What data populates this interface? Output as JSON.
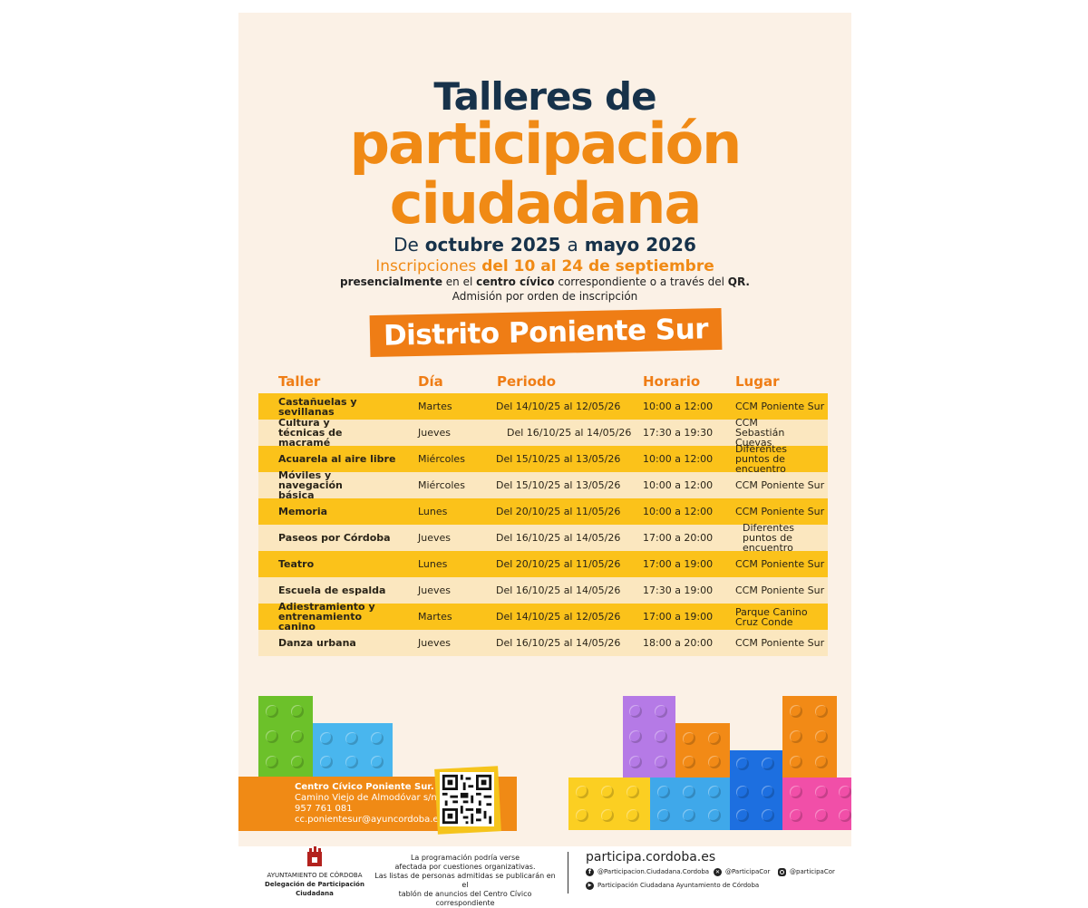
{
  "title": {
    "line1": "Talleres de",
    "line2": "participación",
    "line3": "ciudadana"
  },
  "dates": {
    "de": "De",
    "start": "octubre 2025",
    "a": "a",
    "end": "mayo 2026"
  },
  "inscripciones": {
    "label": "Inscripciones",
    "range": "del 10 al 24 de septiembre"
  },
  "presencial": {
    "bold1": "presencialmente",
    "text1": "en el",
    "bold2": "centro cívico",
    "text2": "correspondiente o a través del",
    "bold3": "QR."
  },
  "admision": "Admisión por orden de inscripción",
  "district": "Distrito Poniente Sur",
  "table": {
    "headers": [
      "Taller",
      "Día",
      "Periodo",
      "Horario",
      "Lugar"
    ],
    "rows": [
      {
        "taller": "Castañuelas y sevillanas",
        "dia": "Martes",
        "periodo": "Del 14/10/25 al 12/05/26",
        "horario": "10:00 a 12:00",
        "lugar": "CCM Poniente Sur"
      },
      {
        "taller": "Cultura y técnicas de macramé",
        "dia": "Jueves",
        "periodo": "Del 16/10/25 al 14/05/26",
        "horario": "17:30 a 19:30",
        "lugar": "CCM Sebastián Cuevas"
      },
      {
        "taller": "Acuarela al aire libre",
        "dia": "Miércoles",
        "periodo": "Del 15/10/25 al 13/05/26",
        "horario": "10:00 a 12:00",
        "lugar": "Diferentes puntos de encuentro"
      },
      {
        "taller": "Móviles y navegación básica",
        "dia": "Miércoles",
        "periodo": "Del 15/10/25 al 13/05/26",
        "horario": "10:00 a 12:00",
        "lugar": "CCM Poniente Sur"
      },
      {
        "taller": "Memoria",
        "dia": "Lunes",
        "periodo": "Del 20/10/25 al 11/05/26",
        "horario": "10:00 a 12:00",
        "lugar": "CCM Poniente Sur"
      },
      {
        "taller": "Paseos por Córdoba",
        "dia": "Jueves",
        "periodo": "Del 16/10/25 al 14/05/26",
        "horario": "17:00 a 20:00",
        "lugar": "Diferentes puntos de encuentro"
      },
      {
        "taller": "Teatro",
        "dia": "Lunes",
        "periodo": "Del 20/10/25 al 11/05/26",
        "horario": "17:00 a 19:00",
        "lugar": "CCM Poniente Sur"
      },
      {
        "taller": "Escuela de espalda",
        "dia": "Jueves",
        "periodo": "Del 16/10/25 al 14/05/26",
        "horario": "17:30 a 19:00",
        "lugar": "CCM Poniente Sur"
      },
      {
        "taller": "Adiestramiento y entrenamiento canino",
        "dia": "Martes",
        "periodo": "Del 14/10/25 al 12/05/26",
        "horario": "17:00 a 19:00",
        "lugar": "Parque Canino Cruz Conde"
      },
      {
        "taller": "Danza urbana",
        "dia": "Jueves",
        "periodo": "Del 16/10/25 al 14/05/26",
        "horario": "18:00 a 20:00",
        "lugar": "CCM Poniente Sur"
      }
    ]
  },
  "contact": {
    "name": "Centro Cívico Poniente Sur.",
    "address": "Camino Viejo de Almodóvar s/n",
    "phone": "957 761 081",
    "email": "cc.ponientesur@ayuncordoba.es"
  },
  "footer": {
    "logo_line1": "AYUNTAMIENTO DE CÓRDOBA",
    "logo_line2": "Delegación de Participación Ciudadana",
    "note_lines": [
      "La programación podría verse",
      "afectada por cuestiones organizativas.",
      "Las listas de personas admitidas se publicarán en el",
      "tablón de anuncios del Centro Cívico correspondiente"
    ],
    "website": "participa.cordoba.es",
    "facebook": "@Participacion.Ciudadana.Cordoba",
    "x": "@ParticipaCor",
    "instagram": "@participaCor",
    "youtube": "Participación Ciudadana Ayuntamiento de Córdoba"
  },
  "colors": {
    "orange": "#f08a15",
    "navy": "#17324a",
    "yellow_row": "#fbc21a",
    "cream_row": "#fbe7bf",
    "poster_bg": "#fbf1e6"
  }
}
